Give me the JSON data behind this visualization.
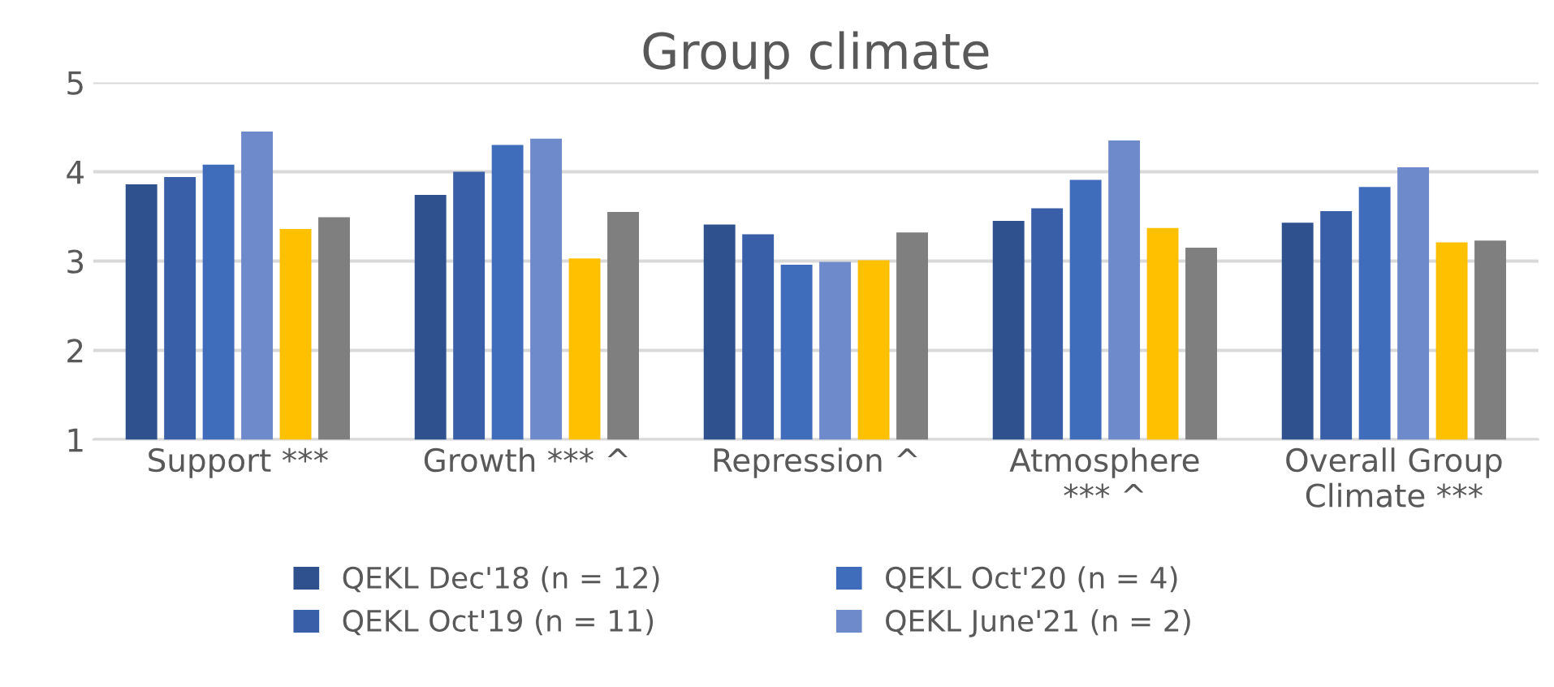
{
  "chart_data": {
    "type": "bar",
    "title": "Group climate",
    "categories": [
      "Support ***",
      "Growth *** ^",
      "Repression ^",
      "Atmosphere\n*** ^",
      "Overall Group\nClimate ***"
    ],
    "series": [
      {
        "name": "QEKL Dec'18 (n = 12)",
        "color": "#2f528f",
        "values": [
          3.86,
          3.74,
          3.41,
          3.45,
          3.43
        ]
      },
      {
        "name": "QEKL Oct'19 (n = 11)",
        "color": "#385fa8",
        "values": [
          3.94,
          4.0,
          3.3,
          3.59,
          3.56
        ]
      },
      {
        "name": "QEKL Oct'20 (n = 4)",
        "color": "#3f6dbb",
        "values": [
          4.08,
          4.3,
          2.96,
          3.91,
          3.83
        ]
      },
      {
        "name": "QEKL June'21 (n = 2)",
        "color": "#6f8acb",
        "values": [
          4.45,
          4.37,
          2.99,
          4.35,
          4.05
        ]
      },
      {
        "color": "#ffc000",
        "values": [
          3.36,
          3.03,
          3.01,
          3.37,
          3.21
        ]
      },
      {
        "color": "#7f7f7f",
        "values": [
          3.49,
          3.55,
          3.32,
          3.15,
          3.23
        ]
      }
    ],
    "ylim": [
      1,
      5
    ],
    "yticks": [
      1,
      2,
      3,
      4,
      5
    ],
    "grid": "y",
    "legend": "bottom"
  }
}
